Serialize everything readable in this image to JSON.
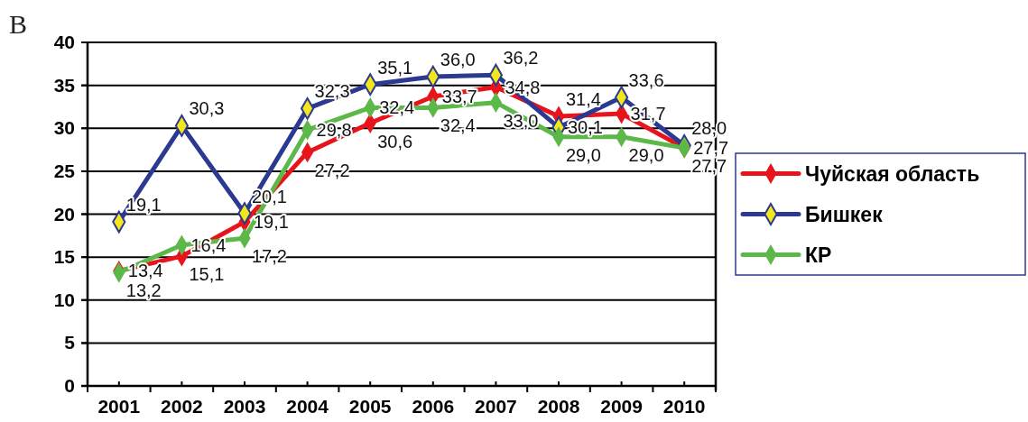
{
  "chart_data": {
    "type": "line",
    "annotations": [
      "В"
    ],
    "categories": [
      "2001",
      "2002",
      "2003",
      "2004",
      "2005",
      "2006",
      "2007",
      "2008",
      "2009",
      "2010"
    ],
    "series": [
      {
        "name": "Чуйская область",
        "color": "#e8141c",
        "values": [
          13.4,
          15.1,
          19.1,
          27.2,
          30.6,
          33.7,
          34.8,
          31.4,
          31.7,
          27.7
        ],
        "value_labels": [
          "13,4",
          "15,1",
          "19,1",
          "27,2",
          "30,6",
          "33,7",
          "34,8",
          "31,4",
          "31,7",
          "27,7"
        ]
      },
      {
        "name": "Бишкек",
        "color": "#2b3990",
        "colors": [
          "#f2e61c",
          "#f2e61c",
          "#f2e61c",
          "#f2e61c",
          "#f2e61c",
          "#f2e61c",
          "#f2e61c",
          "#f2e61c",
          "#f2e61c",
          "#f2e61c"
        ],
        "values": [
          19.1,
          30.3,
          20.1,
          32.3,
          35.1,
          36.0,
          36.2,
          30.1,
          33.6,
          28.0
        ],
        "value_labels": [
          "19,1",
          "30,3",
          "20,1",
          "32,3",
          "35,1",
          "36,0",
          "36,2",
          "30,1",
          "33,6",
          "28,0"
        ]
      },
      {
        "name": "КР",
        "color": "#5cb848",
        "values": [
          13.2,
          16.4,
          17.2,
          29.8,
          32.4,
          32.4,
          33.0,
          29.0,
          29.0,
          27.7
        ],
        "value_labels": [
          "13,2",
          "16,4",
          "17,2",
          "29,8",
          "32,4",
          "32,4",
          "33,0",
          "29,0",
          "29,0",
          "27,7"
        ]
      }
    ],
    "ylim": [
      0,
      40
    ],
    "yticks": [
      0,
      5,
      10,
      15,
      20,
      25,
      30,
      35,
      40
    ],
    "grid": "y",
    "legend": "right",
    "marker": "diamond"
  }
}
